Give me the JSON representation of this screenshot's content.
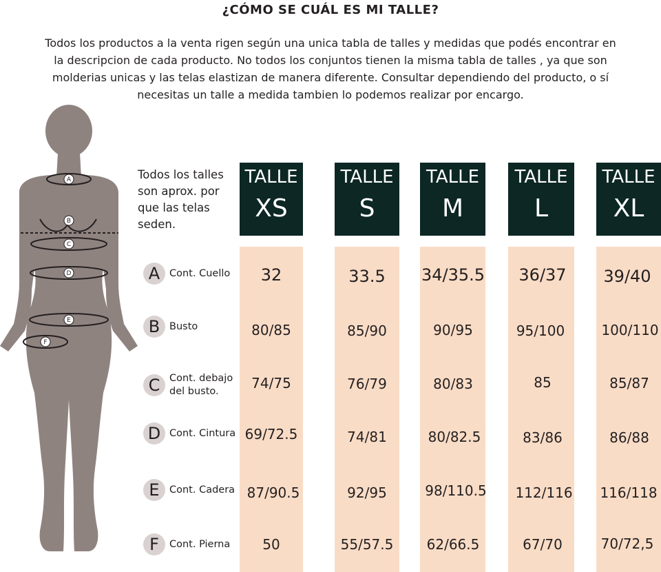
{
  "title": "¿CÓMO SE CUÁL ES MI TALLE?",
  "intro_lines": [
    "Todos los productos a la venta rigen según una unica tabla de talles y medidas que podés encontrar en",
    "la descripcion de cada producto. No todos los conjuntos tienen la misma tabla de talles , ya que son",
    "molderias unicas y las telas elastizan de manera diferente. Consultar dependiendo del producto, o sí",
    "necesitas un talle a medida tambien lo podemos realizar por encargo."
  ],
  "note_lines": [
    "Todos los talles",
    "son aprox. por",
    "que las telas",
    "seden."
  ],
  "sizes": [
    {
      "word": "TALLE",
      "size": "XS"
    },
    {
      "word": "TALLE",
      "size": "S"
    },
    {
      "word": "TALLE",
      "size": "M"
    },
    {
      "word": "TALLE",
      "size": "L"
    },
    {
      "word": "TALLE",
      "size": "XL"
    }
  ],
  "rows": [
    {
      "letter": "A",
      "label": [
        "Cont. Cuello"
      ],
      "values": [
        "32",
        "33.5",
        "34/35.5",
        "36/37",
        "39/40"
      ]
    },
    {
      "letter": "B",
      "label": [
        "Busto"
      ],
      "values": [
        "80/85",
        "85/90",
        "90/95",
        "95/100",
        "100/110"
      ]
    },
    {
      "letter": "C",
      "label": [
        "Cont. debajo",
        "del busto."
      ],
      "values": [
        "74/75",
        "76/79",
        "80/83",
        "85",
        "85/87"
      ]
    },
    {
      "letter": "D",
      "label": [
        "Cont. Cintura"
      ],
      "values": [
        "69/72.5",
        "74/81",
        "80/82.5",
        "83/86",
        "86/88"
      ]
    },
    {
      "letter": "E",
      "label": [
        "Cont. Cadera"
      ],
      "values": [
        "87/90.5",
        "92/95",
        "98/110.5",
        "112/116",
        "116/118"
      ]
    },
    {
      "letter": "F",
      "label": [
        "Cont. Pierna"
      ],
      "values": [
        "50",
        "55/57.5",
        "62/66.5",
        "67/70",
        "70/72,5"
      ]
    }
  ],
  "figure_markers": [
    "A",
    "B",
    "C",
    "D",
    "E",
    "F"
  ],
  "colors": {
    "header_bg": "#0c2724",
    "column_bg": "#f9dcc6",
    "figure": "#8f8380",
    "badge": "#d9d2d0"
  }
}
